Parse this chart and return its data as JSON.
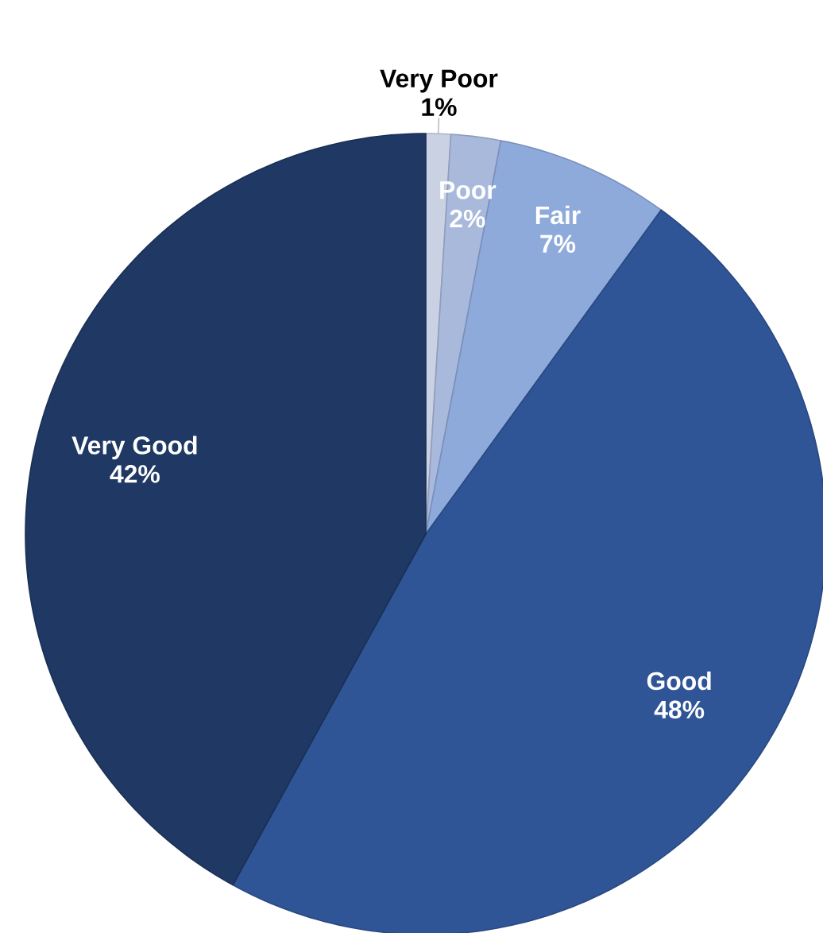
{
  "chart_data": {
    "type": "pie",
    "categories": [
      "Very Poor",
      "Poor",
      "Fair",
      "Good",
      "Very Good"
    ],
    "values": [
      1,
      2,
      7,
      48,
      42
    ],
    "value_labels": [
      "1%",
      "2%",
      "7%",
      "48%",
      "42%"
    ],
    "colors": [
      "#c9d1e3",
      "#a8b9dc",
      "#8eaadb",
      "#2f5597",
      "#1f3864"
    ]
  }
}
